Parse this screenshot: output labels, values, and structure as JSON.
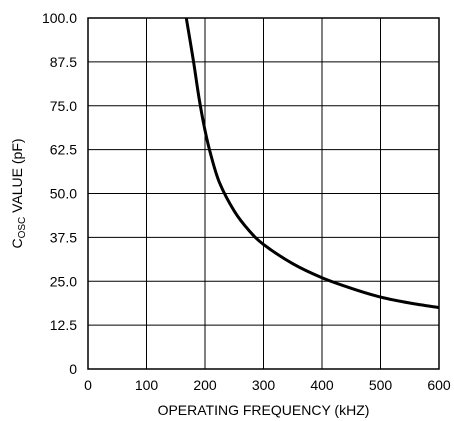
{
  "chart_data": {
    "type": "line",
    "xlabel": "OPERATING FREQUENCY (kHZ)",
    "ylabel": {
      "main": "C",
      "subscript": "OSC",
      "rest": " VALUE (pF)"
    },
    "xlim": [
      0,
      600
    ],
    "ylim": [
      0,
      100
    ],
    "x_ticks": [
      0,
      100,
      200,
      300,
      400,
      500,
      600
    ],
    "y_ticks": [
      0,
      12.5,
      25,
      37.5,
      50,
      62.5,
      75,
      87.5,
      100
    ],
    "x_tick_labels": [
      "0",
      "100",
      "200",
      "300",
      "400",
      "500",
      "600"
    ],
    "y_tick_labels": [
      "0",
      "12.5",
      "25.0",
      "37.5",
      "50.0",
      "62.5",
      "75.0",
      "87.5",
      "100.0"
    ],
    "grid": true,
    "series": [
      {
        "line_color": "#000000",
        "x": [
          168,
          180,
          190,
          200,
          210,
          225,
          250,
          275,
          300,
          350,
          400,
          450,
          500,
          550,
          600
        ],
        "y": [
          100,
          88,
          77,
          68,
          61,
          53,
          45,
          39.5,
          35.5,
          30,
          26,
          23,
          20.5,
          18.8,
          17.5
        ]
      }
    ]
  }
}
